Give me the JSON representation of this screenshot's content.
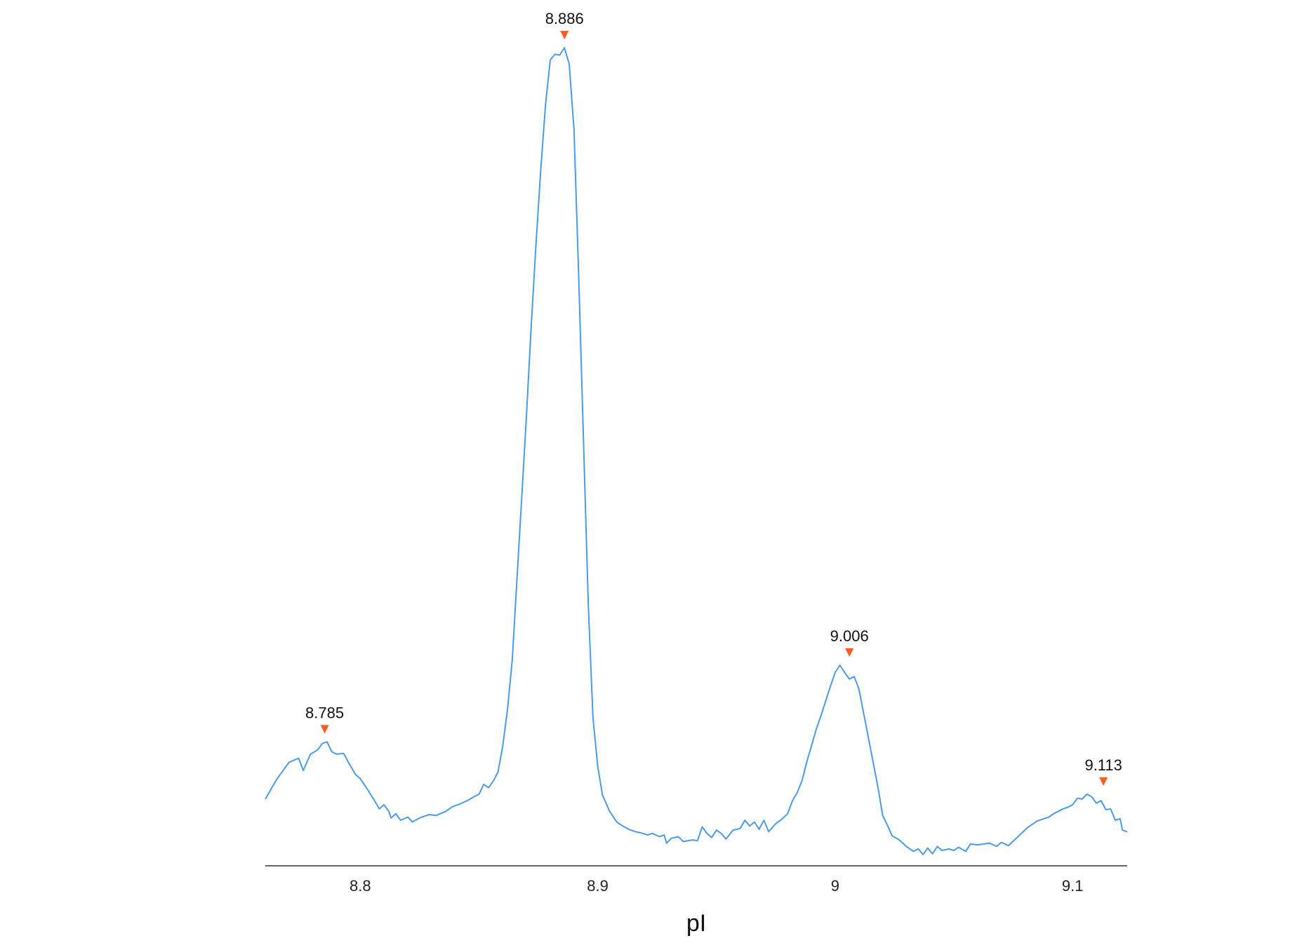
{
  "chart_data": {
    "type": "line",
    "title": "",
    "xlabel": "pI",
    "ylabel": "",
    "xlim": [
      8.76,
      9.123
    ],
    "ylim": [
      0,
      100
    ],
    "grid": false,
    "legend": "none",
    "x_ticks": [
      {
        "value": 8.8,
        "label": "8.8"
      },
      {
        "value": 8.9,
        "label": "8.9"
      },
      {
        "value": 9.0,
        "label": "9"
      },
      {
        "value": 9.1,
        "label": "9.1"
      }
    ],
    "series": [
      {
        "color": "#4a9be8",
        "points": [
          [
            8.76,
            8.0
          ],
          [
            8.765,
            10.5
          ],
          [
            8.77,
            12.5
          ],
          [
            8.774,
            13.0
          ],
          [
            8.776,
            11.5
          ],
          [
            8.779,
            13.5
          ],
          [
            8.782,
            14.0
          ],
          [
            8.784,
            14.8
          ],
          [
            8.786,
            15.0
          ],
          [
            8.788,
            13.8
          ],
          [
            8.79,
            13.5
          ],
          [
            8.793,
            13.6
          ],
          [
            8.795,
            12.5
          ],
          [
            8.798,
            11.0
          ],
          [
            8.8,
            10.5
          ],
          [
            8.803,
            9.2
          ],
          [
            8.806,
            7.8
          ],
          [
            8.808,
            6.8
          ],
          [
            8.81,
            7.3
          ],
          [
            8.812,
            6.5
          ],
          [
            8.813,
            5.7
          ],
          [
            8.815,
            6.2
          ],
          [
            8.817,
            5.4
          ],
          [
            8.82,
            5.8
          ],
          [
            8.822,
            5.2
          ],
          [
            8.825,
            5.7
          ],
          [
            8.829,
            6.1
          ],
          [
            8.832,
            6.0
          ],
          [
            8.836,
            6.5
          ],
          [
            8.839,
            7.1
          ],
          [
            8.842,
            7.4
          ],
          [
            8.845,
            7.8
          ],
          [
            8.848,
            8.3
          ],
          [
            8.85,
            8.6
          ],
          [
            8.852,
            9.8
          ],
          [
            8.854,
            9.4
          ],
          [
            8.856,
            10.2
          ],
          [
            8.858,
            11.3
          ],
          [
            8.86,
            14.5
          ],
          [
            8.862,
            19.0
          ],
          [
            8.864,
            25.0
          ],
          [
            8.866,
            35.0
          ],
          [
            8.868,
            45.0
          ],
          [
            8.87,
            55.0
          ],
          [
            8.872,
            66.0
          ],
          [
            8.874,
            76.0
          ],
          [
            8.876,
            85.0
          ],
          [
            8.878,
            93.0
          ],
          [
            8.88,
            98.5
          ],
          [
            8.882,
            99.2
          ],
          [
            8.884,
            99.1
          ],
          [
            8.886,
            100.0
          ],
          [
            8.888,
            98.0
          ],
          [
            8.89,
            90.0
          ],
          [
            8.892,
            72.0
          ],
          [
            8.894,
            52.0
          ],
          [
            8.896,
            32.0
          ],
          [
            8.898,
            18.0
          ],
          [
            8.9,
            12.0
          ],
          [
            8.902,
            8.5
          ],
          [
            8.905,
            6.5
          ],
          [
            8.908,
            5.2
          ],
          [
            8.91,
            4.8
          ],
          [
            8.913,
            4.3
          ],
          [
            8.916,
            4.0
          ],
          [
            8.919,
            3.8
          ],
          [
            8.921,
            3.6
          ],
          [
            8.923,
            3.8
          ],
          [
            8.926,
            3.4
          ],
          [
            8.928,
            3.6
          ],
          [
            8.929,
            2.6
          ],
          [
            8.931,
            3.2
          ],
          [
            8.934,
            3.4
          ],
          [
            8.936,
            2.8
          ],
          [
            8.94,
            3.0
          ],
          [
            8.942,
            2.9
          ],
          [
            8.944,
            4.6
          ],
          [
            8.946,
            3.8
          ],
          [
            8.948,
            3.3
          ],
          [
            8.95,
            4.2
          ],
          [
            8.952,
            3.8
          ],
          [
            8.954,
            3.1
          ],
          [
            8.957,
            4.2
          ],
          [
            8.96,
            4.4
          ],
          [
            8.962,
            5.4
          ],
          [
            8.964,
            4.7
          ],
          [
            8.966,
            5.2
          ],
          [
            8.968,
            4.3
          ],
          [
            8.97,
            5.4
          ],
          [
            8.972,
            4.0
          ],
          [
            8.975,
            5.0
          ],
          [
            8.977,
            5.4
          ],
          [
            8.98,
            6.2
          ],
          [
            8.982,
            7.8
          ],
          [
            8.984,
            8.8
          ],
          [
            8.986,
            10.2
          ],
          [
            8.988,
            12.5
          ],
          [
            8.99,
            14.5
          ],
          [
            8.992,
            16.5
          ],
          [
            8.994,
            18.2
          ],
          [
            8.996,
            20.0
          ],
          [
            8.998,
            21.8
          ],
          [
            9.0,
            23.5
          ],
          [
            9.002,
            24.4
          ],
          [
            9.004,
            23.5
          ],
          [
            9.006,
            22.7
          ],
          [
            9.008,
            23.0
          ],
          [
            9.01,
            21.5
          ],
          [
            9.012,
            18.5
          ],
          [
            9.014,
            15.5
          ],
          [
            9.016,
            12.5
          ],
          [
            9.018,
            9.5
          ],
          [
            9.02,
            6.0
          ],
          [
            9.022,
            4.8
          ],
          [
            9.024,
            3.5
          ],
          [
            9.027,
            3.0
          ],
          [
            9.03,
            2.2
          ],
          [
            9.033,
            1.6
          ],
          [
            9.035,
            1.9
          ],
          [
            9.037,
            1.2
          ],
          [
            9.039,
            2.0
          ],
          [
            9.041,
            1.3
          ],
          [
            9.043,
            2.2
          ],
          [
            9.045,
            1.7
          ],
          [
            9.048,
            1.9
          ],
          [
            9.05,
            1.7
          ],
          [
            9.052,
            2.1
          ],
          [
            9.055,
            1.6
          ],
          [
            9.057,
            2.5
          ],
          [
            9.06,
            2.4
          ],
          [
            9.065,
            2.6
          ],
          [
            9.068,
            2.2
          ],
          [
            9.07,
            2.7
          ],
          [
            9.073,
            2.3
          ],
          [
            9.077,
            3.4
          ],
          [
            9.081,
            4.5
          ],
          [
            9.085,
            5.3
          ],
          [
            9.088,
            5.6
          ],
          [
            9.09,
            5.8
          ],
          [
            9.092,
            6.2
          ],
          [
            9.094,
            6.5
          ],
          [
            9.096,
            6.8
          ],
          [
            9.098,
            7.0
          ],
          [
            9.1,
            7.3
          ],
          [
            9.102,
            8.1
          ],
          [
            9.104,
            8.0
          ],
          [
            9.106,
            8.6
          ],
          [
            9.108,
            8.3
          ],
          [
            9.11,
            7.5
          ],
          [
            9.112,
            7.8
          ],
          [
            9.114,
            6.7
          ],
          [
            9.116,
            6.8
          ],
          [
            9.118,
            5.4
          ],
          [
            9.12,
            5.6
          ],
          [
            9.121,
            4.2
          ],
          [
            9.123,
            4.0
          ]
        ]
      }
    ],
    "peaks": [
      {
        "x": 8.785,
        "y": 15.0,
        "label": "8.785"
      },
      {
        "x": 8.886,
        "y": 100.0,
        "label": "8.886"
      },
      {
        "x": 9.006,
        "y": 24.4,
        "label": "9.006"
      },
      {
        "x": 9.113,
        "y": 8.6,
        "label": "9.113"
      }
    ],
    "marker_color": "#ff5a1f",
    "axis_color": "#666666"
  }
}
